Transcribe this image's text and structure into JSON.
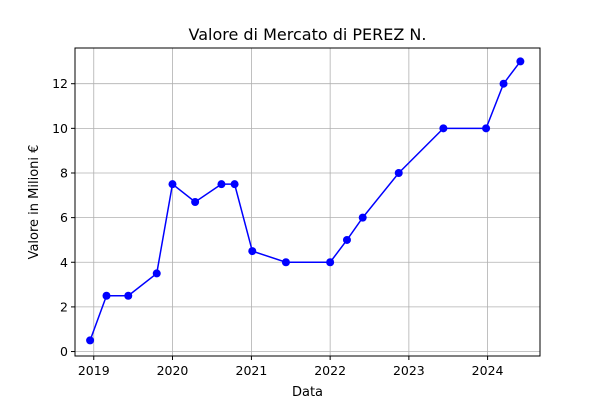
{
  "chart_data": {
    "type": "line",
    "title": "Valore di Mercato di PEREZ N.",
    "xlabel": "Data",
    "ylabel": "Valore in Milioni €",
    "grid": true,
    "colors": {
      "line": "#0000ff",
      "marker": "#0000ff"
    },
    "xlim": [
      "2018-10-06",
      "2024-08-31"
    ],
    "ylim": [
      -0.2,
      13.6
    ],
    "x_ticks": [
      "2019-01-01",
      "2020-01-01",
      "2021-01-01",
      "2022-01-01",
      "2023-01-01",
      "2024-01-01"
    ],
    "x_tick_labels": [
      "2019",
      "2020",
      "2021",
      "2022",
      "2023",
      "2024"
    ],
    "y_ticks": [
      0,
      2,
      4,
      6,
      8,
      10,
      12
    ],
    "y_tick_labels": [
      "0",
      "2",
      "4",
      "6",
      "8",
      "10",
      "12"
    ],
    "series": [
      {
        "x": [
          "2018-12-15",
          "2019-03-01",
          "2019-06-10",
          "2019-10-20",
          "2020-01-01",
          "2020-04-15",
          "2020-08-15",
          "2020-10-15",
          "2021-01-05",
          "2021-06-10",
          "2022-01-01",
          "2022-03-20",
          "2022-06-01",
          "2022-11-15",
          "2023-06-10",
          "2023-12-25",
          "2024-03-15",
          "2024-06-01"
        ],
        "y": [
          0.5,
          2.5,
          2.5,
          3.5,
          7.5,
          6.7,
          7.5,
          7.5,
          4.5,
          4.0,
          4.0,
          5.0,
          6.0,
          8.0,
          10.0,
          10.0,
          12.0,
          13.0
        ]
      }
    ]
  }
}
